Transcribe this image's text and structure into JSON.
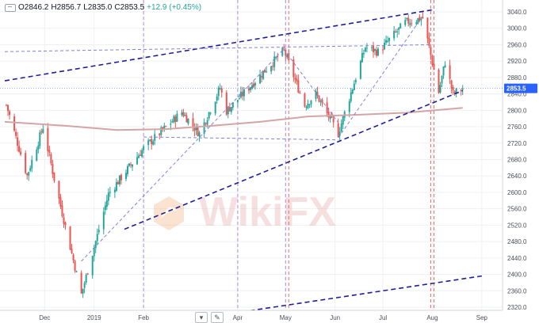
{
  "legend": {
    "open": "O2846.2",
    "high": "H2856.7",
    "low": "L2835.0",
    "close": "C2853.5",
    "change": "+12.9 (+0.45%)"
  },
  "toolbar": {
    "dropdown_icon": "chevron-down-icon",
    "pencil_icon": "pencil-icon"
  },
  "watermark": {
    "text": "WikiFX"
  },
  "colors": {
    "up": "#26a69a",
    "down": "#ef5350",
    "ma": "#d4a5a5",
    "trend_bold": "#1e1e9a",
    "trend_thin": "#8080d8",
    "vline_purple": "#b48ad8",
    "vline_red": "#e86a6a",
    "price_tag": "#2962ff",
    "grid": "#eef0f4"
  },
  "chart_data": {
    "type": "candlestick",
    "instrument_price_last": 2853.5,
    "price_tag": "2853.5",
    "y_ticks": [
      "3040.0",
      "3000.0",
      "2960.0",
      "2920.0",
      "2880.0",
      "2840.0",
      "2800.0",
      "2760.0",
      "2720.0",
      "2680.0",
      "2640.0",
      "2600.0",
      "2560.0",
      "2520.0",
      "2480.0",
      "2440.0",
      "2400.0",
      "2360.0",
      "2320.0"
    ],
    "ylim": [
      2300,
      3060
    ],
    "x_labels": [
      {
        "label": "Dec",
        "date": "2018-12-01"
      },
      {
        "label": "2019",
        "date": "2019-01-01"
      },
      {
        "label": "Feb",
        "date": "2019-02-01"
      },
      {
        "label": "Apr",
        "date": "2019-04-01"
      },
      {
        "label": "May",
        "date": "2019-05-01"
      },
      {
        "label": "Jun",
        "date": "2019-06-01"
      },
      {
        "label": "Jul",
        "date": "2019-07-01"
      },
      {
        "label": "Aug",
        "date": "2019-08-01"
      },
      {
        "label": "Sep",
        "date": "2019-09-01"
      }
    ],
    "xlim": [
      "2018-11-06",
      "2019-09-12"
    ],
    "anchors": [
      {
        "date": "2018-11-07",
        "close": 2813
      },
      {
        "date": "2018-11-20",
        "close": 2641
      },
      {
        "date": "2018-11-30",
        "close": 2760
      },
      {
        "date": "2018-12-07",
        "close": 2633
      },
      {
        "date": "2018-12-24",
        "close": 2351
      },
      {
        "date": "2019-01-10",
        "close": 2596
      },
      {
        "date": "2019-02-01",
        "close": 2707
      },
      {
        "date": "2019-02-25",
        "close": 2796
      },
      {
        "date": "2019-03-08",
        "close": 2743
      },
      {
        "date": "2019-03-21",
        "close": 2855
      },
      {
        "date": "2019-03-25",
        "close": 2798
      },
      {
        "date": "2019-04-30",
        "close": 2946
      },
      {
        "date": "2019-05-13",
        "close": 2812
      },
      {
        "date": "2019-05-20",
        "close": 2840
      },
      {
        "date": "2019-06-03",
        "close": 2744
      },
      {
        "date": "2019-06-20",
        "close": 2954
      },
      {
        "date": "2019-06-28",
        "close": 2942
      },
      {
        "date": "2019-07-15",
        "close": 3014
      },
      {
        "date": "2019-07-26",
        "close": 3025
      },
      {
        "date": "2019-08-05",
        "close": 2844
      },
      {
        "date": "2019-08-09",
        "close": 2918
      },
      {
        "date": "2019-08-14",
        "close": 2840
      },
      {
        "date": "2019-08-20",
        "close": 2853.5
      }
    ],
    "moving_average": [
      {
        "date": "2018-11-06",
        "value": 2772
      },
      {
        "date": "2018-12-15",
        "value": 2762
      },
      {
        "date": "2019-01-15",
        "value": 2752
      },
      {
        "date": "2019-02-15",
        "value": 2754
      },
      {
        "date": "2019-03-15",
        "value": 2762
      },
      {
        "date": "2019-04-15",
        "value": 2772
      },
      {
        "date": "2019-05-15",
        "value": 2785
      },
      {
        "date": "2019-06-15",
        "value": 2789
      },
      {
        "date": "2019-07-15",
        "value": 2794
      },
      {
        "date": "2019-08-20",
        "value": 2806
      }
    ],
    "trendlines": [
      {
        "style": "bold",
        "from": {
          "date": "2018-11-06",
          "value": 2872
        },
        "to": {
          "date": "2019-08-01",
          "value": 3045
        }
      },
      {
        "style": "bold",
        "from": {
          "date": "2019-01-20",
          "value": 2510
        },
        "to": {
          "date": "2019-08-20",
          "value": 2848
        }
      },
      {
        "style": "bold",
        "from": {
          "date": "2019-03-20",
          "value": 2300
        },
        "to": {
          "date": "2019-09-01",
          "value": 2396
        }
      },
      {
        "style": "thin",
        "from": {
          "date": "2018-11-06",
          "value": 2943
        },
        "to": {
          "date": "2019-08-01",
          "value": 2960
        }
      },
      {
        "style": "thin",
        "from": {
          "date": "2018-12-24",
          "value": 2432
        },
        "to": {
          "date": "2019-04-30",
          "value": 2950
        }
      },
      {
        "style": "thin",
        "from": {
          "date": "2019-02-01",
          "value": 2735
        },
        "to": {
          "date": "2019-06-03",
          "value": 2728
        }
      },
      {
        "style": "thin",
        "from": {
          "date": "2019-04-30",
          "value": 2948
        },
        "to": {
          "date": "2019-06-03",
          "value": 2770
        }
      },
      {
        "style": "thin",
        "from": {
          "date": "2019-06-03",
          "value": 2733
        },
        "to": {
          "date": "2019-07-26",
          "value": 3030
        }
      }
    ],
    "vertical_markers": [
      {
        "date": "2019-02-01",
        "color": "purple"
      },
      {
        "date": "2019-04-01",
        "color": "purple"
      },
      {
        "date": "2019-05-01",
        "color": "purple"
      },
      {
        "date": "2019-05-03",
        "color": "red"
      },
      {
        "date": "2019-07-31",
        "color": "red"
      },
      {
        "date": "2019-08-02",
        "color": "red"
      }
    ],
    "grid": true
  }
}
